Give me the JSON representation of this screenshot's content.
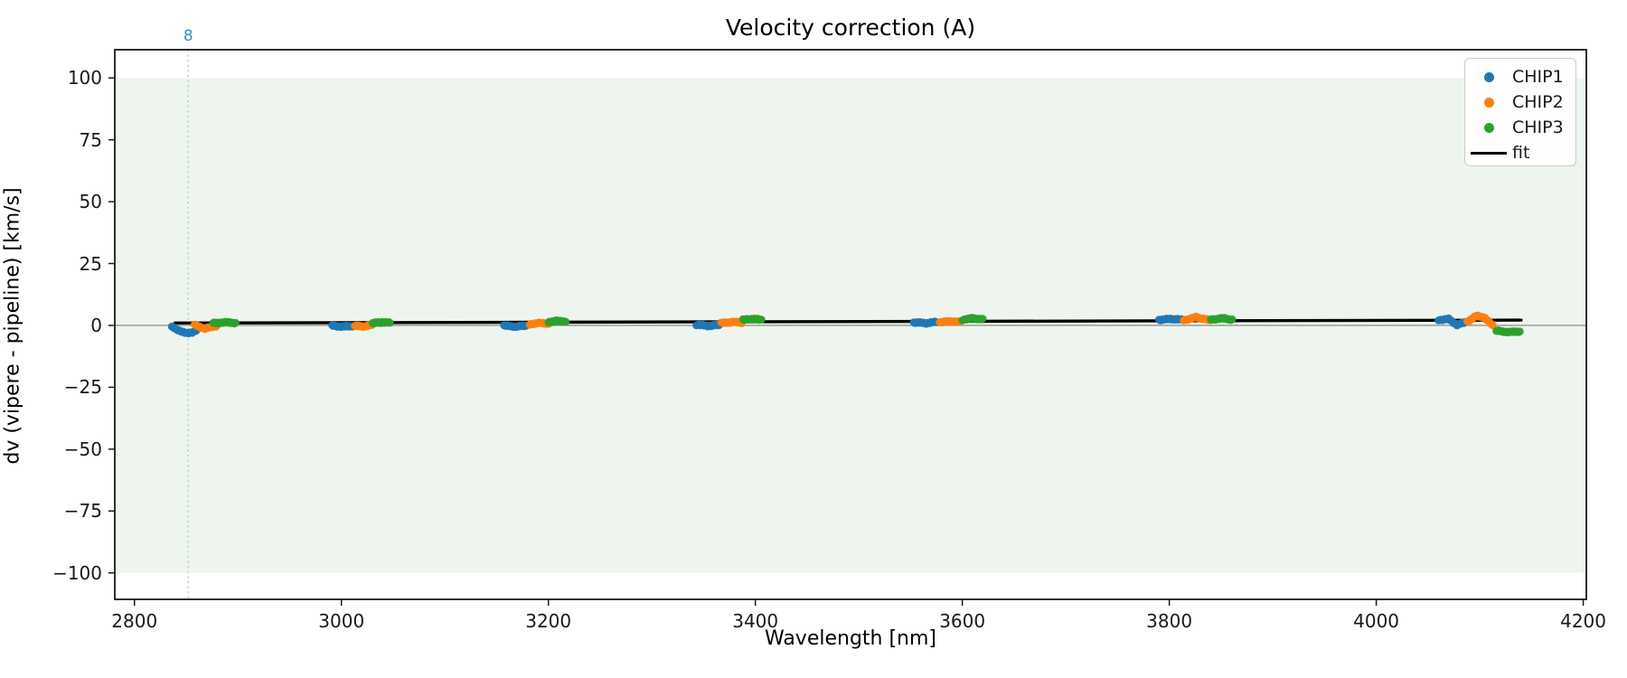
{
  "chart_data": {
    "type": "scatter",
    "title": "Velocity correction (A)",
    "xlabel": "Wavelength [nm]",
    "ylabel": "dv (vipere - pipeline) [km/s]",
    "xlim": [
      2781,
      4203
    ],
    "ylim": [
      -110.7,
      111.4
    ],
    "grid": false,
    "legend_position": "upper right",
    "xticks": [
      {
        "v": 2800,
        "label": "2800"
      },
      {
        "v": 3000,
        "label": "3000"
      },
      {
        "v": 3200,
        "label": "3200"
      },
      {
        "v": 3400,
        "label": "3400"
      },
      {
        "v": 3600,
        "label": "3600"
      },
      {
        "v": 3800,
        "label": "3800"
      },
      {
        "v": 4000,
        "label": "4000"
      },
      {
        "v": 4200,
        "label": "4200"
      }
    ],
    "yticks": [
      {
        "v": 100,
        "label": "100"
      },
      {
        "v": 75,
        "label": "75"
      },
      {
        "v": 50,
        "label": "50"
      },
      {
        "v": 25,
        "label": "25"
      },
      {
        "v": 0,
        "label": "0"
      },
      {
        "v": -25,
        "label": "−25"
      },
      {
        "v": -50,
        "label": "−50"
      },
      {
        "v": -75,
        "label": "−75"
      },
      {
        "v": -100,
        "label": "−100"
      }
    ],
    "band": {
      "ymin": -100,
      "ymax": 100,
      "color": "#eef5ee"
    },
    "zero_line": {
      "y": 0,
      "color": "#808080"
    },
    "order_marker": {
      "x": 2852,
      "label": "8",
      "line_color": "#aacde2",
      "text_color": "#3f8cc4"
    },
    "fit": {
      "label": "fit",
      "color": "#000000",
      "points": [
        [
          2839,
          0.95
        ],
        [
          4140,
          2.15
        ]
      ]
    },
    "series": [
      {
        "name": "CHIP1",
        "color": "#1f77b4",
        "segments": [
          [
            [
              2836,
              -0.6
            ],
            [
              2843,
              -2.0
            ],
            [
              2850,
              -3.2
            ],
            [
              2857,
              -2.6
            ],
            [
              2862,
              -1.6
            ]
          ],
          [
            [
              2991,
              -0.1
            ],
            [
              3001,
              -0.5
            ],
            [
              3012,
              -0.2
            ]
          ],
          [
            [
              3157,
              -0.1
            ],
            [
              3168,
              -0.5
            ],
            [
              3180,
              -0.1
            ]
          ],
          [
            [
              3343,
              0.3
            ],
            [
              3355,
              -0.2
            ],
            [
              3367,
              0.4
            ]
          ],
          [
            [
              3553,
              1.3
            ],
            [
              3565,
              0.9
            ],
            [
              3577,
              1.5
            ]
          ],
          [
            [
              3790,
              2.2
            ],
            [
              3801,
              2.6
            ],
            [
              3813,
              2.3
            ]
          ],
          [
            [
              4060,
              2.2
            ],
            [
              4070,
              2.6
            ],
            [
              4078,
              0.2
            ],
            [
              4087,
              1.5
            ]
          ]
        ]
      },
      {
        "name": "CHIP2",
        "color": "#ff7f0e",
        "segments": [
          [
            [
              2858,
              0.2
            ],
            [
              2868,
              -1.3
            ],
            [
              2881,
              0.0
            ]
          ],
          [
            [
              3013,
              -0.2
            ],
            [
              3022,
              -0.4
            ],
            [
              3031,
              0.3
            ]
          ],
          [
            [
              3182,
              0.5
            ],
            [
              3192,
              1.0
            ],
            [
              3202,
              0.7
            ]
          ],
          [
            [
              3367,
              0.9
            ],
            [
              3378,
              1.4
            ],
            [
              3388,
              1.1
            ]
          ],
          [
            [
              3578,
              1.3
            ],
            [
              3588,
              1.7
            ],
            [
              3599,
              1.4
            ]
          ],
          [
            [
              3814,
              2.1
            ],
            [
              3826,
              3.3
            ],
            [
              3840,
              2.0
            ]
          ],
          [
            [
              4088,
              1.5
            ],
            [
              4097,
              3.9
            ],
            [
              4104,
              3.3
            ],
            [
              4110,
              1.0
            ],
            [
              4114,
              -0.6
            ]
          ]
        ]
      },
      {
        "name": "CHIP3",
        "color": "#2ca02c",
        "segments": [
          [
            [
              2876,
              0.9
            ],
            [
              2888,
              1.3
            ],
            [
              2899,
              1.0
            ]
          ],
          [
            [
              3030,
              0.9
            ],
            [
              3039,
              1.3
            ],
            [
              3048,
              1.0
            ]
          ],
          [
            [
              3200,
              1.4
            ],
            [
              3209,
              1.8
            ],
            [
              3218,
              1.5
            ]
          ],
          [
            [
              3388,
              2.2
            ],
            [
              3398,
              2.7
            ],
            [
              3407,
              2.2
            ]
          ],
          [
            [
              3600,
              2.3
            ],
            [
              3610,
              2.9
            ],
            [
              3621,
              2.4
            ]
          ],
          [
            [
              3840,
              2.3
            ],
            [
              3851,
              2.9
            ],
            [
              3862,
              2.2
            ]
          ],
          [
            [
              4116,
              -2.2
            ],
            [
              4128,
              -2.7
            ],
            [
              4140,
              -2.4
            ]
          ]
        ]
      }
    ]
  },
  "legend": {
    "items": [
      {
        "label": "CHIP1",
        "type": "dot",
        "color": "#1f77b4"
      },
      {
        "label": "CHIP2",
        "type": "dot",
        "color": "#ff7f0e"
      },
      {
        "label": "CHIP3",
        "type": "dot",
        "color": "#2ca02c"
      },
      {
        "label": "fit",
        "type": "line",
        "color": "#000000"
      }
    ]
  }
}
